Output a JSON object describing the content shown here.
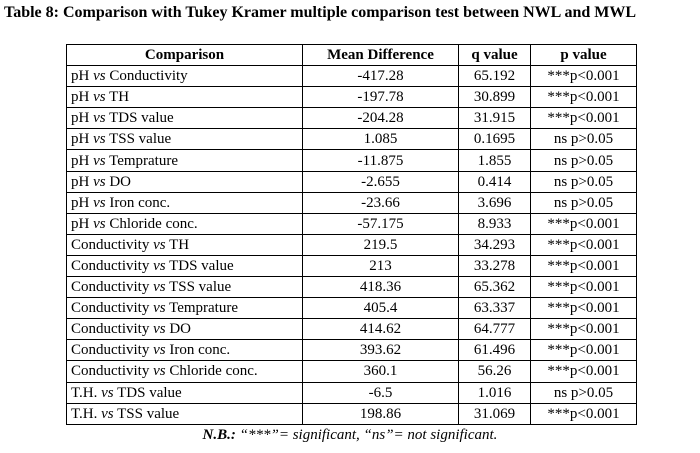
{
  "title": "Table 8: Comparison with Tukey Kramer multiple comparison test between NWL and MWL",
  "table": {
    "header": [
      "Comparison",
      "Mean Difference",
      "q value",
      "p value"
    ],
    "rows": [
      [
        [
          "pH",
          "vs",
          "Conductivity"
        ],
        "-417.28",
        "65.192",
        "***p<0.001"
      ],
      [
        [
          "pH",
          "vs",
          "TH"
        ],
        "-197.78",
        "30.899",
        "***p<0.001"
      ],
      [
        [
          "pH",
          "vs",
          "TDS value"
        ],
        "-204.28",
        "31.915",
        "***p<0.001"
      ],
      [
        [
          "pH",
          "vs",
          "TSS value"
        ],
        "1.085",
        "0.1695",
        "ns p>0.05"
      ],
      [
        [
          "pH",
          "vs",
          "Temprature"
        ],
        "-11.875",
        "1.855",
        "ns p>0.05"
      ],
      [
        [
          "pH",
          "vs",
          "DO"
        ],
        "-2.655",
        "0.414",
        "ns p>0.05"
      ],
      [
        [
          "pH",
          "vs",
          "Iron conc."
        ],
        "-23.66",
        "3.696",
        "ns p>0.05"
      ],
      [
        [
          "pH",
          "vs",
          "Chloride conc."
        ],
        "-57.175",
        "8.933",
        "***p<0.001"
      ],
      [
        [
          "Conductivity",
          "vs",
          "TH"
        ],
        "219.5",
        "34.293",
        "***p<0.001"
      ],
      [
        [
          "Conductivity",
          "vs",
          "TDS value"
        ],
        "213",
        "33.278",
        "***p<0.001"
      ],
      [
        [
          "Conductivity",
          "vs",
          "TSS value"
        ],
        "418.36",
        "65.362",
        "***p<0.001"
      ],
      [
        [
          "Conductivity",
          "vs",
          "Temprature"
        ],
        "405.4",
        "63.337",
        "***p<0.001"
      ],
      [
        [
          "Conductivity",
          "vs",
          "DO"
        ],
        "414.62",
        "64.777",
        "***p<0.001"
      ],
      [
        [
          "Conductivity",
          "vs",
          "Iron conc."
        ],
        "393.62",
        "61.496",
        "***p<0.001"
      ],
      [
        [
          "Conductivity",
          "vs",
          "Chloride conc."
        ],
        "360.1",
        "56.26",
        "***p<0.001"
      ],
      [
        [
          "T.H.",
          "vs",
          "TDS value"
        ],
        "-6.5",
        "1.016",
        "ns p>0.05"
      ],
      [
        [
          "T.H.",
          "vs",
          "TSS value"
        ],
        "198.86",
        "31.069",
        "***p<0.001"
      ]
    ]
  },
  "note": {
    "label": "N.B.:",
    "text": "“***”= significant, “ns”= not significant."
  }
}
